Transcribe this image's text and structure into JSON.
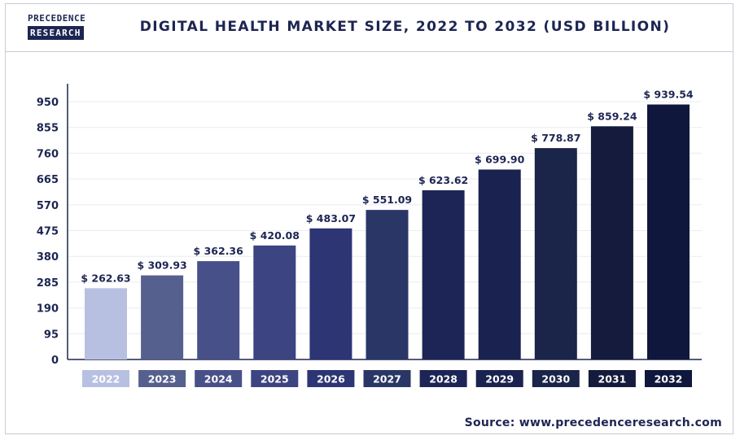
{
  "header": {
    "logo_line1": "PRECEDENCE",
    "logo_line2": "RESEARCH",
    "title": "DIGITAL HEALTH MARKET SIZE, 2022 TO 2032 (USD BILLION)"
  },
  "source": "Source: www.precedenceresearch.com",
  "chart_data": {
    "type": "bar",
    "title": "DIGITAL HEALTH MARKET SIZE, 2022 TO 2032 (USD BILLION)",
    "categories": [
      "2022",
      "2023",
      "2024",
      "2025",
      "2026",
      "2027",
      "2028",
      "2029",
      "2030",
      "2031",
      "2032"
    ],
    "values": [
      262.63,
      309.93,
      362.36,
      420.08,
      483.07,
      551.09,
      623.62,
      699.9,
      778.87,
      859.24,
      939.54
    ],
    "value_labels": [
      "$ 262.63",
      "$ 309.93",
      "$ 362.36",
      "$ 420.08",
      "$ 483.07",
      "$ 551.09",
      "$ 623.62",
      "$ 699.90",
      "$ 778.87",
      "$ 859.24",
      "$ 939.54"
    ],
    "yticks": [
      0,
      95,
      190,
      285,
      380,
      475,
      570,
      665,
      760,
      855,
      950
    ],
    "ylim": [
      0,
      950
    ],
    "grid": true,
    "colors": [
      "#b8c0e2",
      "#55608e",
      "#48508a",
      "#3d4482",
      "#2d3574",
      "#2a3766",
      "#1d2556",
      "#1a2250",
      "#1b2549",
      "#141b3c",
      "#0f173c"
    ]
  }
}
